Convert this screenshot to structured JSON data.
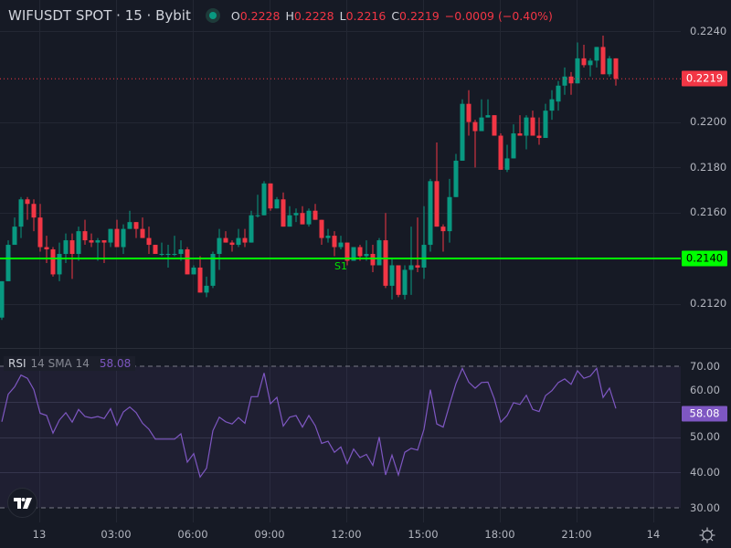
{
  "header": {
    "symbol": "WIFUSDT SPOT · 15 · Bybit",
    "open_label": "O",
    "open": "0.2228",
    "high_label": "H",
    "high": "0.2228",
    "low_label": "L",
    "low": "0.2216",
    "close_label": "C",
    "close": "0.2219",
    "change": "−0.0009 (−0.40%)",
    "market_status": "open"
  },
  "price_axis": {
    "labels": [
      "0.2240",
      "0.2200",
      "0.2180",
      "0.2160",
      "0.2140",
      "0.2120"
    ],
    "last_price_tag": "0.2219",
    "support_tag": "0.2140"
  },
  "support": {
    "label": "S1",
    "price": 0.214
  },
  "rsi": {
    "title": "RSI",
    "params": "14 SMA 14",
    "value": "58.08",
    "axis_labels": [
      "70.00",
      "60.00",
      "50.00",
      "40.00",
      "30.00"
    ],
    "value_tag": "58.08"
  },
  "time_axis": {
    "labels": [
      "13",
      "03:00",
      "06:00",
      "09:00",
      "12:00",
      "15:00",
      "18:00",
      "21:00",
      "14"
    ]
  },
  "colors": {
    "up": "#089981",
    "down": "#f23645",
    "support": "#00ff00",
    "rsi": "#7e57c2",
    "background": "#161a25"
  },
  "icons": {
    "logo": "tradingview-logo",
    "settings": "gear-icon"
  },
  "chart_data": [
    {
      "type": "candlestick",
      "title": "WIFUSDT SPOT · 15 · Bybit",
      "ylim": [
        0.2111,
        0.2248
      ],
      "y_ticks": [
        0.212,
        0.214,
        0.216,
        0.218,
        0.22,
        0.224
      ],
      "x_tick_labels": [
        "13",
        "03:00",
        "06:00",
        "09:00",
        "12:00",
        "15:00",
        "18:00",
        "21:00",
        "14"
      ],
      "grid": true,
      "horizontal_lines": [
        {
          "label": "S1",
          "price": 0.214
        }
      ],
      "last_price": 0.2219,
      "ohlc": [
        [
          0.2114,
          0.213,
          0.2113,
          0.213
        ],
        [
          0.213,
          0.2148,
          0.213,
          0.2146
        ],
        [
          0.2146,
          0.2158,
          0.2146,
          0.2154
        ],
        [
          0.2154,
          0.2167,
          0.2149,
          0.2166
        ],
        [
          0.2166,
          0.2167,
          0.2157,
          0.2164
        ],
        [
          0.2164,
          0.2166,
          0.2152,
          0.2158
        ],
        [
          0.2158,
          0.2164,
          0.2143,
          0.2145
        ],
        [
          0.2145,
          0.215,
          0.2138,
          0.2144
        ],
        [
          0.2144,
          0.2145,
          0.2132,
          0.2133
        ],
        [
          0.2133,
          0.2147,
          0.213,
          0.2142
        ],
        [
          0.2142,
          0.2151,
          0.2138,
          0.2148
        ],
        [
          0.2148,
          0.2151,
          0.2131,
          0.2142
        ],
        [
          0.2142,
          0.2154,
          0.2139,
          0.2152
        ],
        [
          0.2152,
          0.2157,
          0.2146,
          0.2148
        ],
        [
          0.2148,
          0.2151,
          0.2145,
          0.2147
        ],
        [
          0.2147,
          0.2149,
          0.2139,
          0.2148
        ],
        [
          0.2148,
          0.2148,
          0.2138,
          0.2147
        ],
        [
          0.2147,
          0.2153,
          0.2145,
          0.2153
        ],
        [
          0.2153,
          0.2157,
          0.2145,
          0.2145
        ],
        [
          0.2145,
          0.2155,
          0.2142,
          0.2153
        ],
        [
          0.2153,
          0.2161,
          0.2153,
          0.2156
        ],
        [
          0.2156,
          0.2156,
          0.2149,
          0.2153
        ],
        [
          0.2153,
          0.2158,
          0.2149,
          0.2149
        ],
        [
          0.2149,
          0.2154,
          0.2142,
          0.2146
        ],
        [
          0.2146,
          0.2146,
          0.2142,
          0.2142
        ],
        [
          0.2142,
          0.2147,
          0.2141,
          0.2142
        ],
        [
          0.2142,
          0.2146,
          0.2136,
          0.2142
        ],
        [
          0.2142,
          0.215,
          0.2141,
          0.2142
        ],
        [
          0.2142,
          0.2148,
          0.2139,
          0.2144
        ],
        [
          0.2144,
          0.2145,
          0.2133,
          0.2133
        ],
        [
          0.2133,
          0.2137,
          0.2133,
          0.2136
        ],
        [
          0.2136,
          0.2141,
          0.2125,
          0.2125
        ],
        [
          0.2125,
          0.2132,
          0.2123,
          0.2128
        ],
        [
          0.2128,
          0.2143,
          0.2127,
          0.2142
        ],
        [
          0.2142,
          0.2153,
          0.2135,
          0.2149
        ],
        [
          0.2149,
          0.2152,
          0.2147,
          0.2147
        ],
        [
          0.2147,
          0.2148,
          0.2143,
          0.2146
        ],
        [
          0.2146,
          0.2153,
          0.2145,
          0.2149
        ],
        [
          0.2149,
          0.2153,
          0.2145,
          0.2147
        ],
        [
          0.2147,
          0.2161,
          0.2147,
          0.2159
        ],
        [
          0.2159,
          0.2168,
          0.2158,
          0.2159
        ],
        [
          0.2159,
          0.2174,
          0.2159,
          0.2173
        ],
        [
          0.2173,
          0.2173,
          0.2161,
          0.2162
        ],
        [
          0.2162,
          0.2167,
          0.2162,
          0.2166
        ],
        [
          0.2166,
          0.2169,
          0.2154,
          0.2154
        ],
        [
          0.2154,
          0.2163,
          0.2154,
          0.2159
        ],
        [
          0.2159,
          0.2162,
          0.2156,
          0.216
        ],
        [
          0.216,
          0.2163,
          0.2155,
          0.2155
        ],
        [
          0.2155,
          0.2162,
          0.2154,
          0.2161
        ],
        [
          0.2161,
          0.2164,
          0.2157,
          0.2157
        ],
        [
          0.2157,
          0.2157,
          0.2146,
          0.2149
        ],
        [
          0.2149,
          0.2153,
          0.2147,
          0.215
        ],
        [
          0.215,
          0.2152,
          0.2141,
          0.2145
        ],
        [
          0.2145,
          0.215,
          0.2144,
          0.2147
        ],
        [
          0.2147,
          0.2147,
          0.2137,
          0.2139
        ],
        [
          0.2139,
          0.2145,
          0.2139,
          0.2145
        ],
        [
          0.2145,
          0.2146,
          0.2139,
          0.2141
        ],
        [
          0.2141,
          0.2148,
          0.2139,
          0.2142
        ],
        [
          0.2142,
          0.2146,
          0.2134,
          0.2137
        ],
        [
          0.2137,
          0.2149,
          0.2137,
          0.2148
        ],
        [
          0.2148,
          0.216,
          0.2127,
          0.2128
        ],
        [
          0.2128,
          0.214,
          0.2122,
          0.2137
        ],
        [
          0.2137,
          0.2137,
          0.2123,
          0.2124
        ],
        [
          0.2124,
          0.2137,
          0.2122,
          0.2135
        ],
        [
          0.2135,
          0.2154,
          0.2124,
          0.2137
        ],
        [
          0.2137,
          0.2158,
          0.2134,
          0.2136
        ],
        [
          0.2136,
          0.2163,
          0.2131,
          0.2146
        ],
        [
          0.2146,
          0.2175,
          0.2143,
          0.2174
        ],
        [
          0.2174,
          0.2191,
          0.2154,
          0.2154
        ],
        [
          0.2154,
          0.2155,
          0.2143,
          0.2152
        ],
        [
          0.2152,
          0.2175,
          0.2147,
          0.2167
        ],
        [
          0.2167,
          0.2186,
          0.2167,
          0.2183
        ],
        [
          0.2183,
          0.221,
          0.2183,
          0.2208
        ],
        [
          0.2208,
          0.2214,
          0.2194,
          0.22
        ],
        [
          0.22,
          0.2201,
          0.218,
          0.2196
        ],
        [
          0.2196,
          0.221,
          0.2196,
          0.2202
        ],
        [
          0.2202,
          0.221,
          0.2202,
          0.2203
        ],
        [
          0.2203,
          0.2203,
          0.2194,
          0.2194
        ],
        [
          0.2194,
          0.2195,
          0.2179,
          0.2179
        ],
        [
          0.2179,
          0.219,
          0.2178,
          0.2184
        ],
        [
          0.2184,
          0.2199,
          0.2184,
          0.2195
        ],
        [
          0.2195,
          0.2203,
          0.2194,
          0.2194
        ],
        [
          0.2194,
          0.2203,
          0.2188,
          0.2202
        ],
        [
          0.2202,
          0.2205,
          0.2194,
          0.2194
        ],
        [
          0.2194,
          0.2202,
          0.219,
          0.2193
        ],
        [
          0.2193,
          0.2208,
          0.2193,
          0.2205
        ],
        [
          0.2205,
          0.2214,
          0.2201,
          0.221
        ],
        [
          0.2209,
          0.2218,
          0.2205,
          0.2216
        ],
        [
          0.2216,
          0.2224,
          0.2212,
          0.222
        ],
        [
          0.222,
          0.2222,
          0.2212,
          0.2217
        ],
        [
          0.2217,
          0.2235,
          0.2217,
          0.2228
        ],
        [
          0.2228,
          0.2234,
          0.2224,
          0.2225
        ],
        [
          0.2225,
          0.2228,
          0.222,
          0.2227
        ],
        [
          0.2227,
          0.2233,
          0.2224,
          0.2233
        ],
        [
          0.2233,
          0.2238,
          0.2221,
          0.2221
        ],
        [
          0.2221,
          0.2229,
          0.222,
          0.2228
        ],
        [
          0.2228,
          0.2228,
          0.2216,
          0.2219
        ]
      ]
    },
    {
      "type": "line",
      "title": "RSI 14 SMA 14",
      "ylim": [
        25,
        75
      ],
      "y_ticks": [
        30,
        40,
        50,
        60,
        70
      ],
      "band": [
        30,
        70
      ],
      "series": [
        {
          "name": "RSI",
          "values": [
            54.3,
            62.1,
            64.2,
            67.5,
            66.6,
            63.4,
            56.7,
            56.1,
            51.1,
            54.8,
            56.9,
            54.2,
            57.8,
            55.8,
            55.4,
            55.8,
            55.2,
            58.0,
            53.3,
            57.1,
            58.5,
            56.9,
            53.9,
            52.2,
            49.4,
            49.4,
            49.4,
            49.4,
            50.9,
            42.9,
            45.3,
            38.7,
            41.2,
            51.8,
            55.6,
            54.3,
            53.7,
            55.5,
            53.9,
            61.4,
            61.4,
            68.1,
            59.4,
            61.2,
            53.1,
            55.6,
            56.1,
            52.8,
            56.1,
            53.2,
            48.2,
            48.8,
            45.7,
            47.2,
            42.5,
            46.6,
            44.2,
            45.1,
            42.0,
            50.0,
            39.3,
            44.9,
            39.3,
            45.7,
            46.8,
            46.3,
            52.2,
            63.4,
            53.7,
            52.8,
            59.1,
            65.1,
            69.4,
            65.5,
            63.8,
            65.4,
            65.5,
            60.8,
            54.2,
            56.1,
            59.7,
            59.2,
            61.8,
            57.8,
            57.2,
            61.7,
            63.1,
            65.4,
            66.4,
            64.9,
            68.7,
            66.6,
            67.2,
            69.4,
            61.2,
            63.8,
            58.08
          ]
        }
      ]
    }
  ]
}
